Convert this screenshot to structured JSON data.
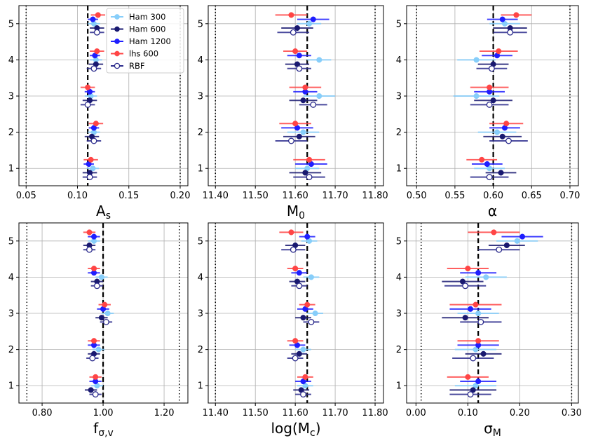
{
  "chart_data": [
    {
      "type": "errorbar",
      "xlabel": [
        "A",
        "s"
      ],
      "xlim": [
        0.043,
        0.2075
      ],
      "xticks": [
        0.05,
        {
          "value": 0.1,
          "label": "0.10"
        },
        0.15,
        {
          "value": 0.2,
          "label": "0.20"
        }
      ],
      "ylim": [
        0.52,
        5.5
      ],
      "yticks": [
        1,
        2,
        3,
        4,
        5
      ],
      "grid": true,
      "truth": 0.11,
      "bounds": [
        0.05,
        0.2
      ],
      "legend": "upper right",
      "series": [
        {
          "name": "Ham 300",
          "color": "#87cefa",
          "values": [
            0.115,
            0.116,
            0.113,
            0.118,
            0.116
          ],
          "errors": [
            0.006,
            0.006,
            0.006,
            0.006,
            0.006
          ]
        },
        {
          "name": "Ham 600",
          "color": "#191970",
          "values": [
            0.112,
            0.114,
            0.112,
            0.118,
            0.119
          ],
          "errors": [
            0.007,
            0.007,
            0.007,
            0.007,
            0.007
          ]
        },
        {
          "name": "Ham 1200",
          "color": "#1f1fff",
          "values": [
            0.111,
            0.116,
            0.112,
            0.117,
            0.115
          ],
          "errors": [
            0.005,
            0.005,
            0.005,
            0.005,
            0.005
          ]
        },
        {
          "name": "lhs 600",
          "color": "#ff4545",
          "values": [
            0.113,
            0.118,
            0.11,
            0.119,
            0.12
          ],
          "errors": [
            0.007,
            0.007,
            0.007,
            0.007,
            0.007
          ]
        },
        {
          "name": "RBF",
          "color": "#2b2b8c",
          "open": true,
          "values": [
            0.112,
            0.116,
            0.11,
            0.116,
            0.119
          ],
          "errors": [
            0.007,
            0.007,
            0.007,
            0.007,
            0.007
          ]
        }
      ]
    },
    {
      "type": "errorbar",
      "xlabel": [
        "M",
        "0"
      ],
      "xlim": [
        11.382,
        11.821
      ],
      "xticks": [
        {
          "value": 11.4,
          "label": "11.40"
        },
        {
          "value": 11.5,
          "label": "11.50"
        },
        {
          "value": 11.6,
          "label": "11.60"
        },
        {
          "value": 11.7,
          "label": "11.70"
        },
        {
          "value": 11.8,
          "label": "11.80"
        }
      ],
      "ylim": [
        0.52,
        5.5
      ],
      "yticks": [
        1,
        2,
        3,
        4,
        5
      ],
      "grid": true,
      "truth": 11.63,
      "bounds": [
        11.4,
        11.8
      ],
      "series": [
        {
          "color": "#87cefa",
          "values": [
            11.63,
            11.62,
            11.66,
            11.66,
            11.635
          ],
          "errors": [
            0.03,
            0.04,
            0.04,
            0.03,
            0.03
          ]
        },
        {
          "color": "#191970",
          "values": [
            11.625,
            11.61,
            11.62,
            11.605,
            11.605
          ],
          "errors": [
            0.04,
            0.04,
            0.035,
            0.03,
            0.04
          ]
        },
        {
          "color": "#1f1fff",
          "values": [
            11.64,
            11.605,
            11.625,
            11.61,
            11.645
          ],
          "errors": [
            0.04,
            0.04,
            0.03,
            0.03,
            0.04
          ]
        },
        {
          "color": "#ff4545",
          "values": [
            11.635,
            11.6,
            11.625,
            11.6,
            11.59
          ],
          "errors": [
            0.04,
            0.04,
            0.04,
            0.03,
            0.04
          ]
        },
        {
          "color": "#2b2b8c",
          "open": true,
          "values": [
            11.635,
            11.59,
            11.645,
            11.61,
            11.595
          ],
          "errors": [
            0.04,
            0.04,
            0.035,
            0.03,
            0.04
          ]
        }
      ]
    },
    {
      "type": "errorbar",
      "xlabel": [
        "α"
      ],
      "xlim": [
        0.487,
        0.711
      ],
      "xticks": [
        {
          "value": 0.5,
          "label": "0.50"
        },
        0.55,
        {
          "value": 0.6,
          "label": "0.60"
        },
        0.65,
        {
          "value": 0.7,
          "label": "0.70"
        }
      ],
      "ylim": [
        0.52,
        5.5
      ],
      "yticks": [
        1,
        2,
        3,
        4,
        5
      ],
      "grid": true,
      "truth": 0.6,
      "bounds": [
        0.5,
        0.7
      ],
      "series": [
        {
          "color": "#87cefa",
          "values": [
            0.595,
            0.605,
            0.578,
            0.578,
            0.615
          ],
          "errors": [
            0.02,
            0.025,
            0.03,
            0.025,
            0.02
          ]
        },
        {
          "color": "#191970",
          "values": [
            0.61,
            0.612,
            0.6,
            0.6,
            0.622
          ],
          "errors": [
            0.02,
            0.025,
            0.025,
            0.02,
            0.022
          ]
        },
        {
          "color": "#1f1fff",
          "values": [
            0.592,
            0.615,
            0.595,
            0.605,
            0.612
          ],
          "errors": [
            0.02,
            0.02,
            0.02,
            0.02,
            0.02
          ]
        },
        {
          "color": "#ff4545",
          "values": [
            0.585,
            0.617,
            0.595,
            0.607,
            0.63
          ],
          "errors": [
            0.02,
            0.022,
            0.025,
            0.025,
            0.02
          ]
        },
        {
          "color": "#2b2b8c",
          "open": true,
          "values": [
            0.595,
            0.62,
            0.595,
            0.598,
            0.622
          ],
          "errors": [
            0.025,
            0.025,
            0.025,
            0.02,
            0.022
          ]
        }
      ]
    },
    {
      "type": "errorbar",
      "xlabel": [
        "f",
        "σ,v"
      ],
      "xlim": [
        0.724,
        1.278
      ],
      "xticks": [
        {
          "value": 0.8,
          "label": "0.80"
        },
        {
          "value": 1,
          "label": "1.00"
        },
        {
          "value": 1.2,
          "label": "1.20"
        }
      ],
      "ylim": [
        0.52,
        5.5
      ],
      "yticks": [
        1,
        2,
        3,
        4,
        5
      ],
      "grid": true,
      "truth": 1,
      "bounds": [
        0.75,
        1.25
      ],
      "series": [
        {
          "color": "#87cefa",
          "values": [
            0.98,
            0.985,
            1.015,
            0.995,
            0.97
          ],
          "errors": [
            0.02,
            0.02,
            0.02,
            0.02,
            0.02
          ]
        },
        {
          "color": "#191970",
          "values": [
            0.96,
            0.97,
            0.995,
            0.98,
            0.955
          ],
          "errors": [
            0.02,
            0.02,
            0.02,
            0.02,
            0.02
          ]
        },
        {
          "color": "#1f1fff",
          "values": [
            0.975,
            0.97,
            1,
            0.97,
            0.97
          ],
          "errors": [
            0.02,
            0.02,
            0.02,
            0.02,
            0.02
          ]
        },
        {
          "color": "#ff4545",
          "values": [
            0.975,
            0.97,
            1.005,
            0.97,
            0.955
          ],
          "errors": [
            0.02,
            0.02,
            0.02,
            0.02,
            0.02
          ]
        },
        {
          "color": "#2b2b8c",
          "open": true,
          "values": [
            0.975,
            0.965,
            1.01,
            0.98,
            0.955
          ],
          "errors": [
            0.02,
            0.02,
            0.02,
            0.02,
            0.02
          ]
        }
      ]
    },
    {
      "type": "errorbar",
      "xlabel": [
        "log(M",
        "c",
        ")"
      ],
      "xlim": [
        11.382,
        11.821
      ],
      "xticks": [
        {
          "value": 11.4,
          "label": "11.40"
        },
        {
          "value": 11.5,
          "label": "11.50"
        },
        {
          "value": 11.6,
          "label": "11.60"
        },
        {
          "value": 11.7,
          "label": "11.70"
        },
        {
          "value": 11.8,
          "label": "11.80"
        }
      ],
      "ylim": [
        0.52,
        5.5
      ],
      "yticks": [
        1,
        2,
        3,
        4,
        5
      ],
      "grid": true,
      "truth": 11.63,
      "bounds": [
        11.4,
        11.8
      ],
      "series": [
        {
          "color": "#87cefa",
          "values": [
            11.625,
            11.62,
            11.65,
            11.64,
            11.635
          ],
          "errors": [
            0.02,
            0.02,
            0.02,
            0.02,
            0.02
          ]
        },
        {
          "color": "#191970",
          "values": [
            11.615,
            11.61,
            11.62,
            11.605,
            11.6
          ],
          "errors": [
            0.02,
            0.02,
            0.02,
            0.02,
            0.025
          ]
        },
        {
          "color": "#1f1fff",
          "values": [
            11.62,
            11.605,
            11.625,
            11.61,
            11.63
          ],
          "errors": [
            0.02,
            0.02,
            0.02,
            0.02,
            0.02
          ]
        },
        {
          "color": "#ff4545",
          "values": [
            11.625,
            11.6,
            11.63,
            11.6,
            11.59
          ],
          "errors": [
            0.02,
            0.02,
            0.02,
            0.02,
            0.03
          ]
        },
        {
          "color": "#2b2b8c",
          "open": true,
          "values": [
            11.62,
            11.6,
            11.64,
            11.61,
            11.595
          ],
          "errors": [
            0.02,
            0.02,
            0.02,
            0.02,
            0.03
          ]
        }
      ]
    },
    {
      "type": "errorbar",
      "xlabel": [
        "σ",
        "M"
      ],
      "xlim": [
        -0.018,
        0.313
      ],
      "xticks": [
        {
          "value": 0,
          "label": "0.00"
        },
        {
          "value": 0.1,
          "label": "0.10"
        },
        {
          "value": 0.2,
          "label": "0.20"
        },
        {
          "value": 0.3,
          "label": "0.30"
        }
      ],
      "ylim": [
        0.52,
        5.5
      ],
      "yticks": [
        1,
        2,
        3,
        4,
        5
      ],
      "grid": true,
      "truth": 0.12,
      "bounds": [
        0.01,
        0.3
      ],
      "series": [
        {
          "color": "#87cefa",
          "values": [
            0.115,
            0.115,
            0.12,
            0.135,
            0.195
          ],
          "errors": [
            0.04,
            0.04,
            0.04,
            0.04,
            0.04
          ]
        },
        {
          "color": "#191970",
          "values": [
            0.11,
            0.13,
            0.095,
            0.09,
            0.175
          ],
          "errors": [
            0.045,
            0.035,
            0.045,
            0.04,
            0.035
          ]
        },
        {
          "color": "#1f1fff",
          "values": [
            0.12,
            0.12,
            0.105,
            0.12,
            0.205
          ],
          "errors": [
            0.035,
            0.04,
            0.04,
            0.035,
            0.04
          ]
        },
        {
          "color": "#ff4545",
          "values": [
            0.1,
            0.12,
            0.115,
            0.1,
            0.15
          ],
          "errors": [
            0.04,
            0.04,
            0.05,
            0.04,
            0.05
          ]
        },
        {
          "color": "#2b2b8c",
          "open": true,
          "values": [
            0.105,
            0.11,
            0.125,
            0.095,
            0.16
          ],
          "errors": [
            0.04,
            0.04,
            0.04,
            0.04,
            0.04
          ]
        }
      ]
    }
  ]
}
